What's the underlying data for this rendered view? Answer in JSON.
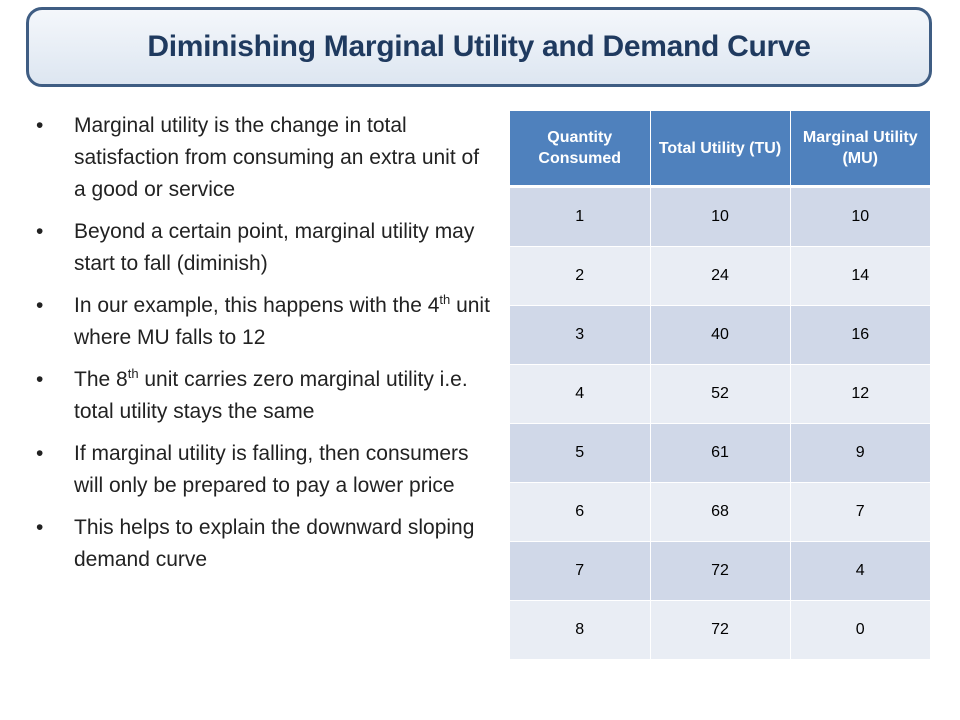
{
  "title": "Diminishing Marginal Utility and Demand Curve",
  "bullets": [
    {
      "text": "Marginal utility is the change in total satisfaction from consuming an extra unit of a good or service"
    },
    {
      "text": "Beyond a certain point, marginal utility may start to fall (diminish)"
    },
    {
      "before": "In our example, this happens with the 4",
      "sup": "th",
      "after": " unit where MU falls to 12"
    },
    {
      "before": "The 8",
      "sup": "th",
      "after": " unit carries zero marginal utility i.e. total utility stays the same"
    },
    {
      "text": "If marginal utility is falling, then consumers will only be prepared to pay a lower price"
    },
    {
      "text": "This helps to explain the downward sloping demand curve"
    }
  ],
  "table": {
    "headers": [
      "Quantity Consumed",
      "Total Utility (TU)",
      "Marginal Utility (MU)"
    ],
    "rows": [
      [
        "1",
        "10",
        "10"
      ],
      [
        "2",
        "24",
        "14"
      ],
      [
        "3",
        "40",
        "16"
      ],
      [
        "4",
        "52",
        "12"
      ],
      [
        "5",
        "61",
        "9"
      ],
      [
        "6",
        "68",
        "7"
      ],
      [
        "7",
        "72",
        "4"
      ],
      [
        "8",
        "72",
        "0"
      ]
    ]
  },
  "colors": {
    "title_border": "#3f5d83",
    "title_text": "#1f3a5f",
    "table_header": "#4f81bd",
    "row_dark": "#d0d8e8",
    "row_light": "#e9edf4"
  }
}
